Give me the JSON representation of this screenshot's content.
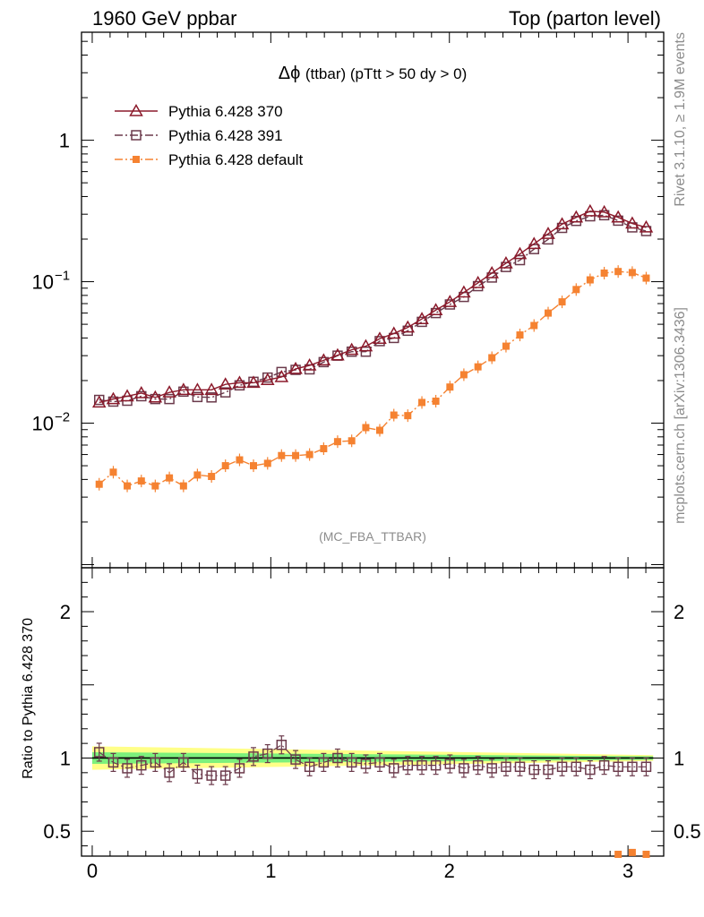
{
  "header": {
    "left": "1960 GeV ppbar",
    "right": "Top (parton level)"
  },
  "side_labels": {
    "rivet": "Rivet 3.1.10, ≥ 1.9M events",
    "mcplots": "mcplots.cern.ch [arXiv:1306.3436]"
  },
  "chart_data": [
    {
      "type": "line",
      "title": "Δϕ (ttbar) (pTtt > 50 dy > 0)",
      "title_symbol": "Δϕ",
      "title_rest": "(ttbar) (pTtt > 50 dy > 0)",
      "watermark": "(MC_FBA_TTBAR)",
      "xlabel": "",
      "ylabel": "",
      "yscale": "log",
      "xlim": [
        -0.06,
        3.2
      ],
      "ylim": [
        0.00095,
        5.8
      ],
      "yticks": [
        {
          "value": 1,
          "label": "1",
          "base": "1",
          "exp": ""
        },
        {
          "value": 0.1,
          "label": "10^-1",
          "base": "10",
          "exp": "−1"
        },
        {
          "value": 0.01,
          "label": "10^-2",
          "base": "10",
          "exp": "−2"
        }
      ],
      "x": [
        0.039,
        0.118,
        0.196,
        0.275,
        0.353,
        0.432,
        0.511,
        0.589,
        0.668,
        0.746,
        0.825,
        0.903,
        0.982,
        1.06,
        1.139,
        1.217,
        1.296,
        1.374,
        1.453,
        1.532,
        1.61,
        1.689,
        1.767,
        1.846,
        1.924,
        2.003,
        2.081,
        2.16,
        2.238,
        2.317,
        2.395,
        2.474,
        2.553,
        2.631,
        2.71,
        2.788,
        2.867,
        2.945,
        3.024,
        3.102
      ],
      "series": [
        {
          "name": "Pythia 6.428 370",
          "color": "#8b1a2b",
          "marker": "triangle-open",
          "linestyle": "solid",
          "values": [
            0.014,
            0.0148,
            0.0155,
            0.0163,
            0.0152,
            0.0165,
            0.0172,
            0.0172,
            0.0172,
            0.0188,
            0.0193,
            0.0193,
            0.0202,
            0.0212,
            0.0242,
            0.0256,
            0.0278,
            0.0302,
            0.033,
            0.035,
            0.0395,
            0.043,
            0.0475,
            0.0545,
            0.063,
            0.072,
            0.084,
            0.098,
            0.115,
            0.135,
            0.157,
            0.185,
            0.218,
            0.255,
            0.285,
            0.315,
            0.31,
            0.285,
            0.258,
            0.242
          ]
        },
        {
          "name": "Pythia 6.428 391",
          "color": "#6b3a4b",
          "marker": "square-open",
          "linestyle": "dashdot",
          "values": [
            0.0146,
            0.0142,
            0.0144,
            0.0155,
            0.0148,
            0.0148,
            0.0167,
            0.0153,
            0.0152,
            0.0165,
            0.0185,
            0.0196,
            0.021,
            0.023,
            0.0238,
            0.024,
            0.027,
            0.03,
            0.032,
            0.032,
            0.038,
            0.04,
            0.045,
            0.052,
            0.06,
            0.069,
            0.078,
            0.093,
            0.107,
            0.127,
            0.142,
            0.17,
            0.199,
            0.24,
            0.269,
            0.29,
            0.295,
            0.27,
            0.242,
            0.228
          ]
        },
        {
          "name": "Pythia 6.428 default",
          "color": "#f58231",
          "marker": "square-filled",
          "linestyle": "dashdot",
          "values": [
            0.0037,
            0.0045,
            0.0036,
            0.0039,
            0.0036,
            0.0041,
            0.0036,
            0.0043,
            0.0042,
            0.005,
            0.0055,
            0.005,
            0.0052,
            0.0059,
            0.0059,
            0.006,
            0.0066,
            0.0074,
            0.0075,
            0.0093,
            0.0089,
            0.0114,
            0.0113,
            0.014,
            0.0143,
            0.018,
            0.022,
            0.025,
            0.029,
            0.035,
            0.042,
            0.049,
            0.06,
            0.072,
            0.088,
            0.103,
            0.115,
            0.118,
            0.116,
            0.106
          ]
        }
      ]
    },
    {
      "type": "line",
      "title": "",
      "xlabel": "",
      "ylabel": "Ratio to Pythia 6.428 370",
      "xlim": [
        -0.06,
        3.2
      ],
      "ylim": [
        0.33,
        2.3
      ],
      "yticks": [
        {
          "value": 0.5,
          "label": "0.5"
        },
        {
          "value": 1,
          "label": "1"
        },
        {
          "value": 2,
          "label": "2"
        }
      ],
      "xticks": [
        {
          "value": 0,
          "label": "0"
        },
        {
          "value": 1,
          "label": "1"
        },
        {
          "value": 2,
          "label": "2"
        },
        {
          "value": 3,
          "label": "3"
        }
      ],
      "reference_line": 1,
      "band_inner": {
        "color": "#7cf07c",
        "halfwidth_start": 0.04,
        "halfwidth_end": 0.012
      },
      "band_outer": {
        "color": "#ffff88",
        "halfwidth_start": 0.08,
        "halfwidth_end": 0.02
      },
      "series": [
        {
          "name": "Pythia 6.428 391",
          "color": "#6b3a4b",
          "marker": "square-open",
          "values": [
            1.04,
            0.97,
            0.93,
            0.95,
            0.97,
            0.9,
            0.97,
            0.89,
            0.88,
            0.88,
            0.93,
            1.01,
            1.03,
            1.09,
            0.99,
            0.94,
            0.97,
            1.0,
            0.97,
            0.96,
            0.97,
            0.93,
            0.95,
            0.95,
            0.95,
            0.96,
            0.93,
            0.95,
            0.93,
            0.94,
            0.94,
            0.92,
            0.92,
            0.94,
            0.94,
            0.92,
            0.95,
            0.94,
            0.94,
            0.94
          ]
        },
        {
          "name": "Pythia 6.428 default",
          "color": "#f58231",
          "marker": "square-filled",
          "visible_points": [
            {
              "x": 2.945,
              "y": 0.33
            },
            {
              "x": 3.024,
              "y": 0.355
            },
            {
              "x": 3.102,
              "y": 0.34
            }
          ]
        }
      ]
    }
  ]
}
